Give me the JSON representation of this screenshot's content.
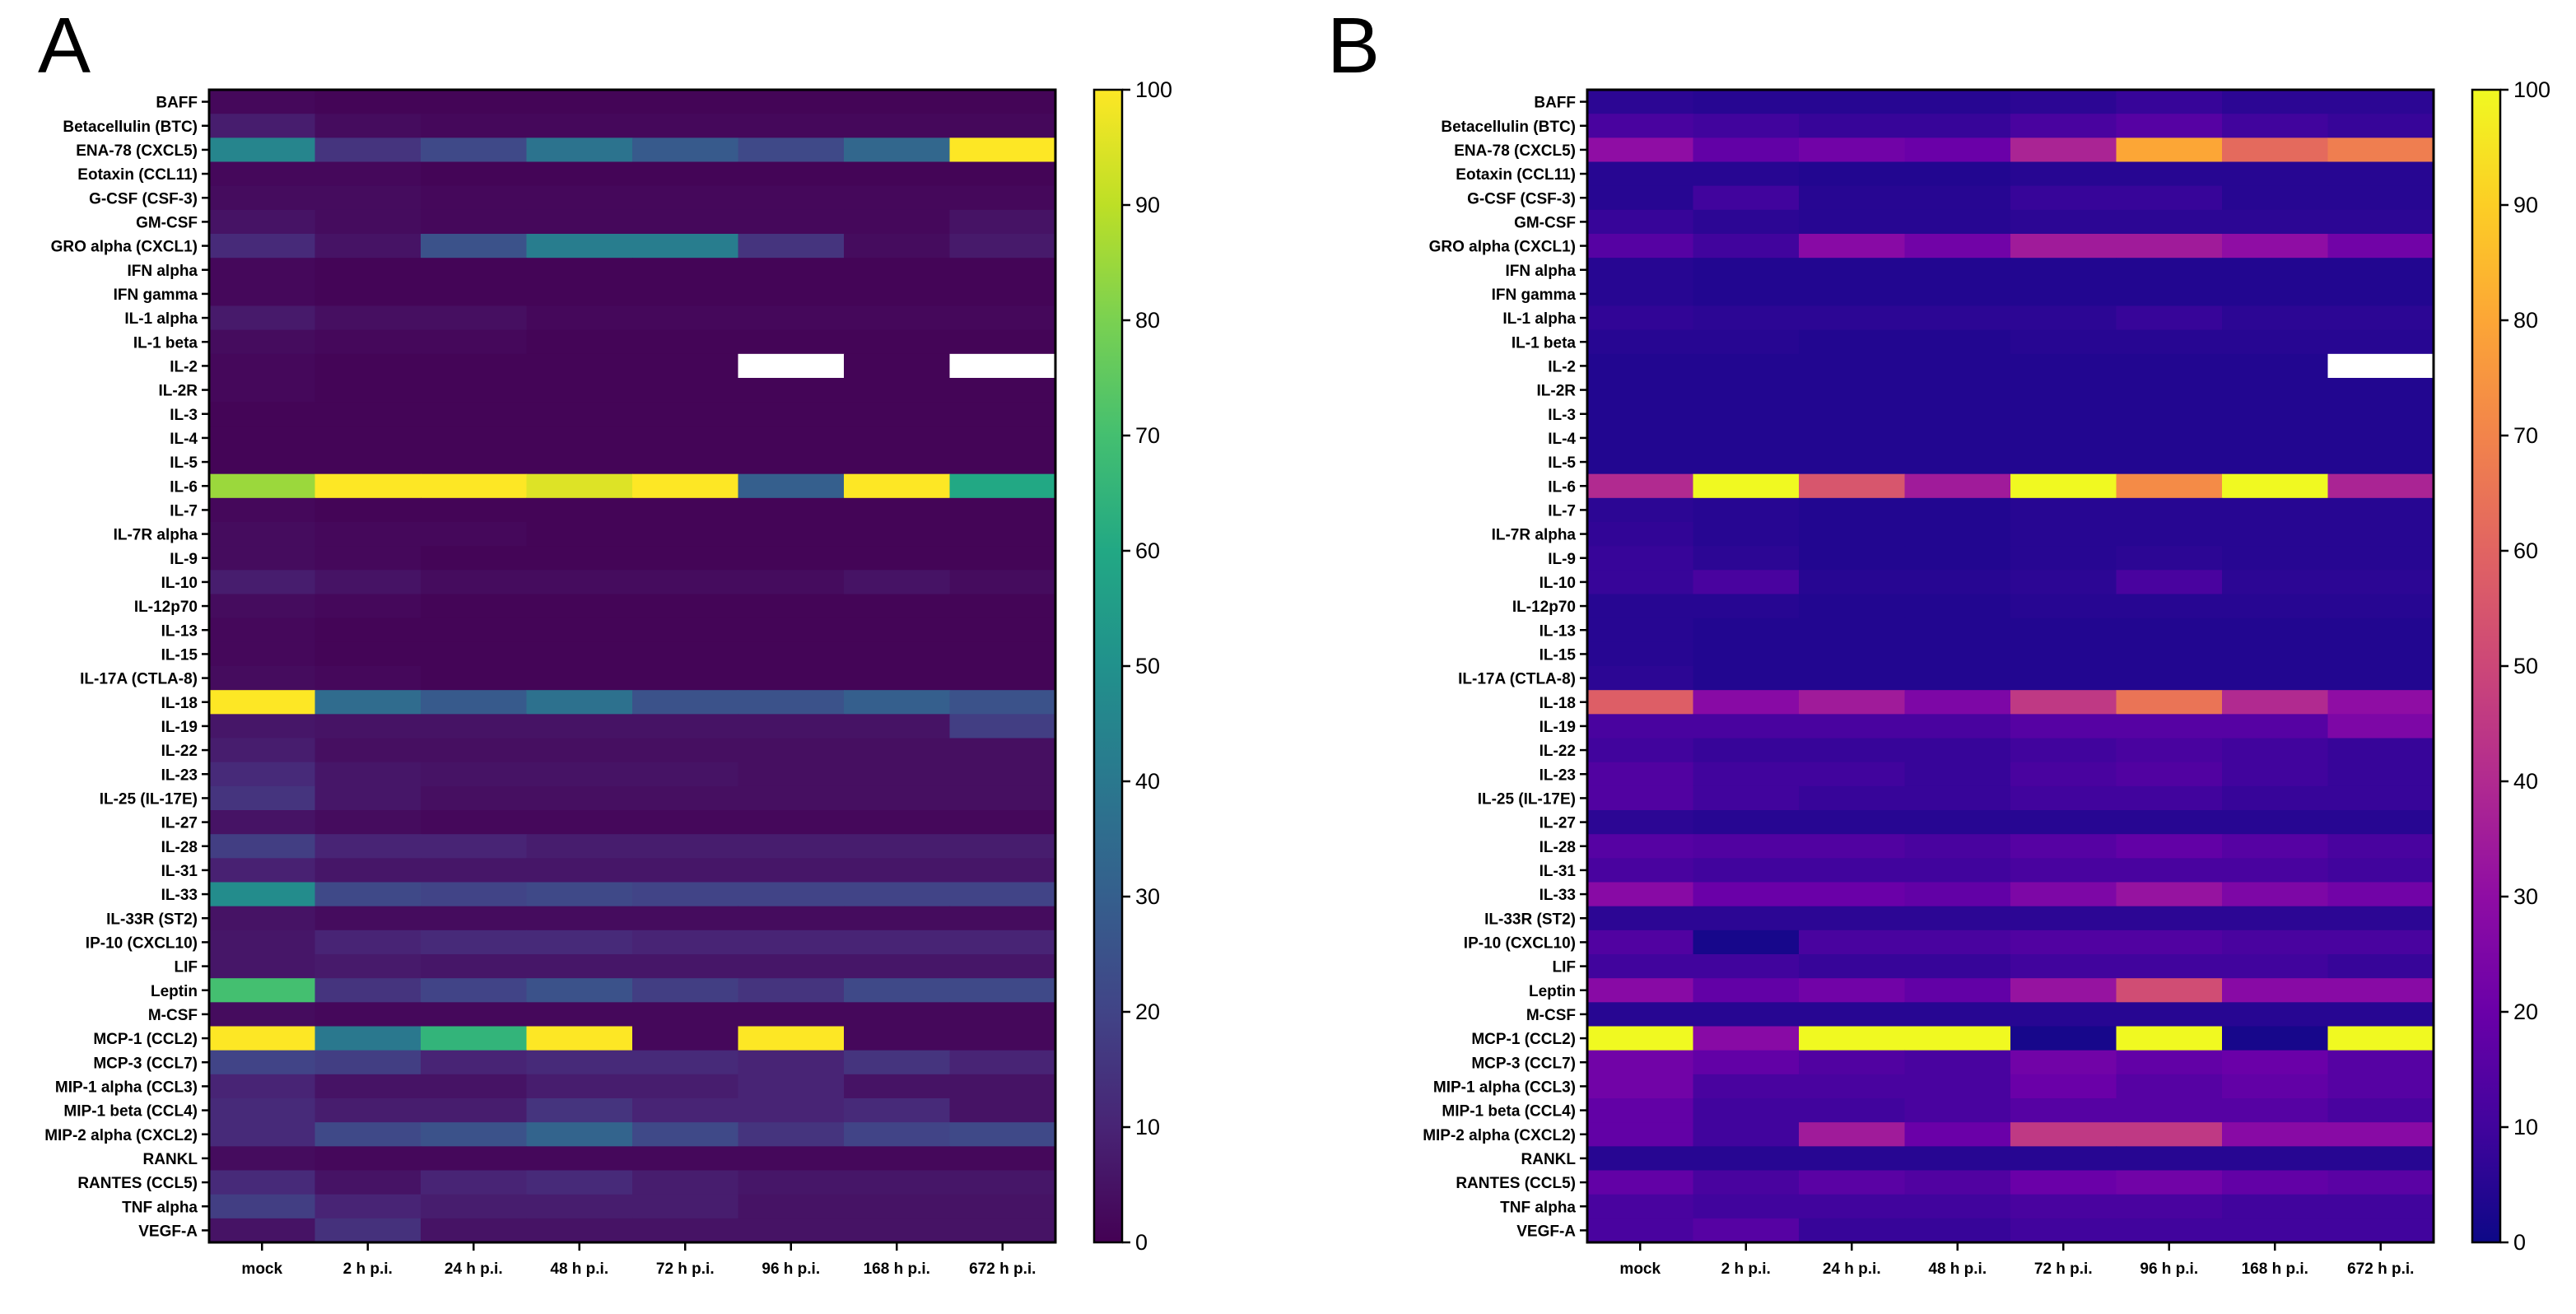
{
  "figure": {
    "panels": [
      "A",
      "B"
    ]
  },
  "chart_data": [
    {
      "type": "heatmap",
      "panel": "A",
      "colormap": "viridis",
      "title": "",
      "xlabel": "",
      "ylabel": "",
      "columns": [
        "mock",
        "2 h p.i.",
        "24 h p.i.",
        "48 h p.i.",
        "72 h p.i.",
        "96 h p.i.",
        "168 h p.i.",
        "672 h p.i."
      ],
      "rows": [
        "BAFF",
        "Betacellulin (BTC)",
        "ENA-78 (CXCL5)",
        "Eotaxin (CCL11)",
        "G-CSF (CSF-3)",
        "GM-CSF",
        "GRO alpha (CXCL1)",
        "IFN alpha",
        "IFN gamma",
        "IL-1 alpha",
        "IL-1 beta",
        "IL-2",
        "IL-2R",
        "IL-3",
        "IL-4",
        "IL-5",
        "IL-6",
        "IL-7",
        "IL-7R alpha",
        "IL-9",
        "IL-10",
        "IL-12p70",
        "IL-13",
        "IL-15",
        "IL-17A (CTLA-8)",
        "IL-18",
        "IL-19",
        "IL-22",
        "IL-23",
        "IL-25 (IL-17E)",
        "IL-27",
        "IL-28",
        "IL-31",
        "IL-33",
        "IL-33R (ST2)",
        "IP-10 (CXCL10)",
        "LIF",
        "Leptin",
        "M-CSF",
        "MCP-1 (CCL2)",
        "MCP-3 (CCL7)",
        "MIP-1 alpha (CCL3)",
        "MIP-1 beta (CCL4)",
        "MIP-2 alpha (CXCL2)",
        "RANKL",
        "RANTES (CCL5)",
        "TNF alpha",
        "VEGF-A"
      ],
      "values": [
        [
          2,
          1,
          1,
          1,
          1,
          1,
          1,
          1
        ],
        [
          8,
          3,
          2,
          2,
          2,
          2,
          2,
          2
        ],
        [
          45,
          15,
          22,
          38,
          28,
          22,
          33,
          100
        ],
        [
          2,
          2,
          1,
          1,
          1,
          1,
          1,
          1
        ],
        [
          3,
          3,
          2,
          2,
          2,
          2,
          2,
          2
        ],
        [
          5,
          3,
          2,
          2,
          2,
          2,
          2,
          5
        ],
        [
          12,
          5,
          25,
          42,
          42,
          15,
          3,
          7
        ],
        [
          2,
          1,
          1,
          1,
          1,
          1,
          1,
          1
        ],
        [
          2,
          1,
          1,
          1,
          1,
          1,
          1,
          1
        ],
        [
          7,
          4,
          4,
          2,
          2,
          2,
          2,
          2
        ],
        [
          3,
          2,
          2,
          1,
          1,
          1,
          1,
          1
        ],
        [
          2,
          1,
          1,
          1,
          1,
          null,
          1,
          null
        ],
        [
          2,
          1,
          1,
          1,
          1,
          1,
          1,
          1
        ],
        [
          1,
          1,
          1,
          1,
          1,
          1,
          1,
          1
        ],
        [
          1,
          1,
          1,
          1,
          1,
          1,
          1,
          1
        ],
        [
          1,
          1,
          1,
          1,
          1,
          1,
          1,
          1
        ],
        [
          85,
          100,
          100,
          95,
          100,
          30,
          100,
          60
        ],
        [
          2,
          1,
          1,
          1,
          1,
          1,
          1,
          1
        ],
        [
          3,
          2,
          2,
          1,
          1,
          1,
          1,
          1
        ],
        [
          3,
          2,
          1,
          1,
          1,
          1,
          1,
          1
        ],
        [
          8,
          5,
          3,
          3,
          3,
          3,
          5,
          3
        ],
        [
          3,
          2,
          1,
          1,
          1,
          1,
          1,
          1
        ],
        [
          2,
          1,
          1,
          1,
          1,
          1,
          1,
          1
        ],
        [
          2,
          1,
          1,
          1,
          1,
          1,
          1,
          1
        ],
        [
          3,
          2,
          1,
          1,
          1,
          1,
          1,
          1
        ],
        [
          100,
          35,
          28,
          37,
          25,
          25,
          30,
          25
        ],
        [
          6,
          5,
          5,
          5,
          5,
          5,
          5,
          18
        ],
        [
          8,
          4,
          4,
          4,
          4,
          4,
          4,
          4
        ],
        [
          12,
          6,
          5,
          5,
          5,
          4,
          4,
          4
        ],
        [
          15,
          6,
          4,
          4,
          4,
          4,
          4,
          4
        ],
        [
          5,
          3,
          2,
          2,
          2,
          2,
          2,
          2
        ],
        [
          18,
          10,
          10,
          8,
          8,
          8,
          8,
          8
        ],
        [
          9,
          6,
          6,
          6,
          6,
          6,
          6,
          6
        ],
        [
          48,
          22,
          20,
          22,
          20,
          20,
          20,
          20
        ],
        [
          5,
          3,
          3,
          3,
          3,
          3,
          3,
          3
        ],
        [
          6,
          10,
          12,
          12,
          10,
          10,
          10,
          10
        ],
        [
          6,
          7,
          6,
          6,
          6,
          6,
          6,
          6
        ],
        [
          70,
          15,
          20,
          25,
          18,
          15,
          22,
          22
        ],
        [
          3,
          2,
          2,
          2,
          2,
          2,
          2,
          2
        ],
        [
          100,
          40,
          65,
          100,
          2,
          100,
          2,
          2
        ],
        [
          20,
          18,
          10,
          12,
          12,
          10,
          15,
          10
        ],
        [
          10,
          5,
          5,
          8,
          8,
          10,
          5,
          5
        ],
        [
          12,
          8,
          8,
          15,
          10,
          10,
          12,
          5
        ],
        [
          12,
          22,
          25,
          32,
          22,
          15,
          20,
          22
        ],
        [
          3,
          2,
          2,
          2,
          2,
          2,
          2,
          2
        ],
        [
          12,
          5,
          10,
          12,
          8,
          6,
          6,
          6
        ],
        [
          18,
          10,
          8,
          8,
          8,
          5,
          5,
          5
        ],
        [
          5,
          14,
          5,
          5,
          5,
          5,
          5,
          5
        ]
      ],
      "colorbar": {
        "range": [
          0,
          100
        ],
        "ticks": [
          "0",
          "10",
          "20",
          "30",
          "40",
          "50",
          "60",
          "70",
          "80",
          "90",
          "100"
        ]
      }
    },
    {
      "type": "heatmap",
      "panel": "B",
      "colormap": "plasma",
      "title": "",
      "xlabel": "",
      "ylabel": "",
      "columns": [
        "mock",
        "2 h p.i.",
        "24 h p.i.",
        "48 h p.i.",
        "72 h p.i.",
        "96 h p.i.",
        "168 h p.i.",
        "672 h p.i."
      ],
      "rows": [
        "BAFF",
        "Betacellulin (BTC)",
        "ENA-78 (CXCL5)",
        "Eotaxin (CCL11)",
        "G-CSF (CSF-3)",
        "GM-CSF",
        "GRO alpha (CXCL1)",
        "IFN alpha",
        "IFN gamma",
        "IL-1 alpha",
        "IL-1 beta",
        "IL-2",
        "IL-2R",
        "IL-3",
        "IL-4",
        "IL-5",
        "IL-6",
        "IL-7",
        "IL-7R alpha",
        "IL-9",
        "IL-10",
        "IL-12p70",
        "IL-13",
        "IL-15",
        "IL-17A (CTLA-8)",
        "IL-18",
        "IL-19",
        "IL-22",
        "IL-23",
        "IL-25 (IL-17E)",
        "IL-27",
        "IL-28",
        "IL-31",
        "IL-33",
        "IL-33R (ST2)",
        "IP-10 (CXCL10)",
        "LIF",
        "Leptin",
        "M-CSF",
        "MCP-1 (CCL2)",
        "MCP-3 (CCL7)",
        "MIP-1 alpha (CCL3)",
        "MIP-1 beta (CCL4)",
        "MIP-2 alpha (CXCL2)",
        "RANKL",
        "RANTES (CCL5)",
        "TNF alpha",
        "VEGF-A"
      ],
      "values": [
        [
          6,
          5,
          5,
          5,
          6,
          8,
          6,
          6
        ],
        [
          12,
          10,
          8,
          8,
          12,
          15,
          10,
          8
        ],
        [
          30,
          18,
          22,
          20,
          38,
          80,
          62,
          68
        ],
        [
          5,
          5,
          4,
          4,
          5,
          5,
          5,
          5
        ],
        [
          5,
          10,
          5,
          5,
          8,
          8,
          5,
          5
        ],
        [
          8,
          6,
          5,
          5,
          6,
          6,
          6,
          6
        ],
        [
          15,
          10,
          28,
          22,
          35,
          35,
          30,
          22
        ],
        [
          5,
          4,
          4,
          4,
          4,
          4,
          4,
          4
        ],
        [
          5,
          4,
          4,
          4,
          4,
          4,
          4,
          4
        ],
        [
          7,
          6,
          6,
          6,
          6,
          8,
          6,
          6
        ],
        [
          5,
          5,
          4,
          4,
          5,
          5,
          5,
          5
        ],
        [
          4,
          4,
          4,
          4,
          4,
          4,
          4,
          null
        ],
        [
          4,
          4,
          4,
          4,
          4,
          4,
          4,
          4
        ],
        [
          4,
          4,
          4,
          4,
          4,
          4,
          4,
          4
        ],
        [
          4,
          4,
          4,
          4,
          4,
          4,
          4,
          4
        ],
        [
          4,
          4,
          4,
          4,
          4,
          4,
          4,
          4
        ],
        [
          40,
          100,
          55,
          35,
          100,
          72,
          100,
          38
        ],
        [
          6,
          5,
          4,
          4,
          5,
          5,
          5,
          5
        ],
        [
          7,
          5,
          4,
          4,
          5,
          5,
          5,
          5
        ],
        [
          8,
          6,
          4,
          4,
          5,
          6,
          5,
          5
        ],
        [
          8,
          12,
          5,
          5,
          6,
          12,
          6,
          6
        ],
        [
          5,
          5,
          4,
          4,
          5,
          5,
          5,
          5
        ],
        [
          5,
          4,
          4,
          4,
          4,
          4,
          4,
          4
        ],
        [
          5,
          4,
          4,
          4,
          4,
          4,
          4,
          4
        ],
        [
          6,
          4,
          4,
          4,
          4,
          4,
          4,
          4
        ],
        [
          58,
          28,
          35,
          25,
          45,
          65,
          40,
          30
        ],
        [
          12,
          12,
          12,
          12,
          15,
          15,
          15,
          25
        ],
        [
          10,
          8,
          8,
          8,
          10,
          12,
          10,
          8
        ],
        [
          14,
          10,
          10,
          8,
          12,
          14,
          10,
          8
        ],
        [
          14,
          10,
          8,
          8,
          10,
          10,
          8,
          8
        ],
        [
          6,
          5,
          5,
          5,
          5,
          5,
          5,
          5
        ],
        [
          15,
          14,
          14,
          12,
          15,
          18,
          15,
          12
        ],
        [
          12,
          10,
          10,
          10,
          12,
          12,
          12,
          10
        ],
        [
          28,
          20,
          20,
          18,
          25,
          32,
          25,
          22
        ],
        [
          6,
          6,
          6,
          6,
          6,
          6,
          6,
          6
        ],
        [
          14,
          2,
          12,
          12,
          14,
          14,
          12,
          12
        ],
        [
          10,
          10,
          8,
          8,
          10,
          10,
          10,
          8
        ],
        [
          28,
          18,
          22,
          18,
          32,
          52,
          28,
          28
        ],
        [
          5,
          5,
          5,
          5,
          5,
          5,
          5,
          5
        ],
        [
          100,
          28,
          100,
          100,
          2,
          100,
          2,
          100
        ],
        [
          22,
          18,
          14,
          12,
          22,
          18,
          20,
          15
        ],
        [
          22,
          12,
          12,
          12,
          20,
          15,
          18,
          15
        ],
        [
          18,
          10,
          10,
          12,
          15,
          15,
          15,
          12
        ],
        [
          18,
          10,
          35,
          20,
          45,
          45,
          28,
          28
        ],
        [
          5,
          5,
          5,
          5,
          5,
          5,
          5,
          5
        ],
        [
          18,
          12,
          16,
          14,
          20,
          22,
          18,
          16
        ],
        [
          12,
          10,
          10,
          10,
          12,
          12,
          10,
          10
        ],
        [
          12,
          15,
          8,
          8,
          10,
          10,
          10,
          10
        ]
      ],
      "colorbar": {
        "range": [
          0,
          100
        ],
        "ticks": [
          "0",
          "10",
          "20",
          "30",
          "40",
          "50",
          "60",
          "70",
          "80",
          "90",
          "100"
        ]
      }
    }
  ]
}
